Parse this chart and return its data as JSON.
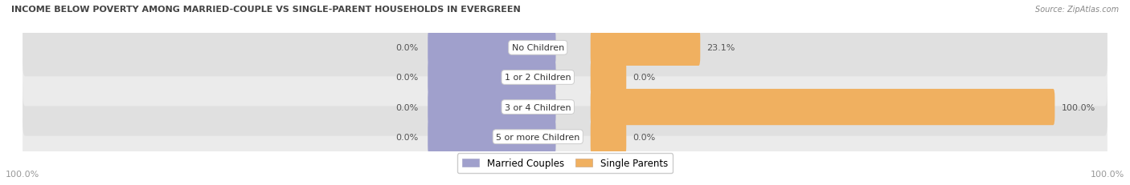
{
  "title": "INCOME BELOW POVERTY AMONG MARRIED-COUPLE VS SINGLE-PARENT HOUSEHOLDS IN EVERGREEN",
  "source": "Source: ZipAtlas.com",
  "categories": [
    "No Children",
    "1 or 2 Children",
    "3 or 4 Children",
    "5 or more Children"
  ],
  "married_couples": [
    0.0,
    0.0,
    0.0,
    0.0
  ],
  "single_parents": [
    23.1,
    0.0,
    100.0,
    0.0
  ],
  "married_color": "#a0a0cc",
  "single_color": "#f0b060",
  "title_color": "#444444",
  "source_color": "#888888",
  "label_color": "#555555",
  "axis_label_color": "#999999",
  "bg_color_odd": "#ebebeb",
  "bg_color_even": "#e0e0e0",
  "max_val": 100.0,
  "fig_width": 14.06,
  "fig_height": 2.32,
  "dpi": 100
}
